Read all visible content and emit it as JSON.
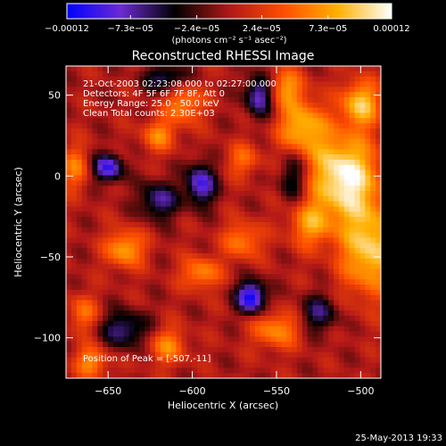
{
  "chart_data": {
    "type": "heatmap",
    "title": "Reconstructed RHESSI Image",
    "xlabel": "Heliocentric X (arcsec)",
    "ylabel": "Heliocentric Y (arcsec)",
    "xlim": [
      -675,
      -488
    ],
    "ylim": [
      -125,
      68
    ],
    "x_ticks": [
      -650,
      -600,
      -550,
      -500
    ],
    "x_tick_labels": [
      "−650",
      "−600",
      "−550",
      "−500"
    ],
    "y_ticks": [
      -100,
      -50,
      0,
      50
    ],
    "y_tick_labels": [
      "−100",
      "−50",
      "0",
      "50"
    ],
    "colorbar": {
      "min": -0.00012,
      "max": 0.00012,
      "tick_values": [
        -0.00012,
        -7.3e-05,
        -2.4e-05,
        2.4e-05,
        7.3e-05,
        0.00012
      ],
      "tick_labels": [
        "−0.00012",
        "−7.3e−05",
        "−2.4e−05",
        "2.4e−05",
        "7.3e−05",
        "0.00012"
      ],
      "unit_label": "(photons cm⁻² s⁻¹ asec⁻²)",
      "colors": [
        "#0000ff",
        "#6b2bd2",
        "#000000",
        "#b01818",
        "#ff4d00",
        "#ffb000",
        "#ffffff"
      ]
    },
    "annotations": [
      "21-Oct-2003 02:23:08.000 to 02:27:00.000",
      "Detectors: 4F 5F 6F 7F 8F, Att 0",
      "Energy Range: 25.0 - 50.0 keV",
      "Clean    Total counts: 2.30E+03",
      "Position of Peak = [-507,-11]"
    ],
    "peak": [
      -507,
      -11
    ],
    "features": [
      {
        "x": -510,
        "y": 0,
        "amp": 1.0,
        "sx": 14,
        "sy": 18
      },
      {
        "x": -535,
        "y": 30,
        "amp": 0.7,
        "sx": 10,
        "sy": 12
      },
      {
        "x": -500,
        "y": 45,
        "amp": 0.75,
        "sx": 8,
        "sy": 10
      },
      {
        "x": -495,
        "y": -45,
        "amp": 0.8,
        "sx": 12,
        "sy": 20
      },
      {
        "x": -530,
        "y": -30,
        "amp": 0.55,
        "sx": 9,
        "sy": 10
      },
      {
        "x": -640,
        "y": -45,
        "amp": 0.65,
        "sx": 8,
        "sy": 8
      },
      {
        "x": -595,
        "y": -60,
        "amp": 0.55,
        "sx": 8,
        "sy": 7
      },
      {
        "x": -605,
        "y": 45,
        "amp": 0.55,
        "sx": 8,
        "sy": 9
      },
      {
        "x": -620,
        "y": 25,
        "amp": 0.5,
        "sx": 7,
        "sy": 7
      },
      {
        "x": -545,
        "y": 55,
        "amp": 0.55,
        "sx": 8,
        "sy": 8
      },
      {
        "x": -570,
        "y": -40,
        "amp": 0.5,
        "sx": 8,
        "sy": 8
      },
      {
        "x": -550,
        "y": -95,
        "amp": 0.55,
        "sx": 10,
        "sy": 8
      },
      {
        "x": -615,
        "y": -105,
        "amp": 0.5,
        "sx": 8,
        "sy": 8
      },
      {
        "x": -660,
        "y": -115,
        "amp": 0.55,
        "sx": 7,
        "sy": 7
      },
      {
        "x": -670,
        "y": 5,
        "amp": 0.45,
        "sx": 6,
        "sy": 10
      },
      {
        "x": -665,
        "y": -85,
        "amp": 0.45,
        "sx": 6,
        "sy": 8
      },
      {
        "x": -570,
        "y": 10,
        "amp": 0.4,
        "sx": 7,
        "sy": 7
      },
      {
        "x": -650,
        "y": 5,
        "amp": -0.85,
        "sx": 6,
        "sy": 6
      },
      {
        "x": -595,
        "y": -5,
        "amp": -0.8,
        "sx": 6,
        "sy": 9
      },
      {
        "x": -565,
        "y": -75,
        "amp": -1.0,
        "sx": 6,
        "sy": 7
      },
      {
        "x": -560,
        "y": 50,
        "amp": -0.75,
        "sx": 6,
        "sy": 9
      },
      {
        "x": -620,
        "y": -15,
        "amp": -0.6,
        "sx": 8,
        "sy": 8
      },
      {
        "x": -640,
        "y": -95,
        "amp": -0.55,
        "sx": 10,
        "sy": 8
      },
      {
        "x": -525,
        "y": -85,
        "amp": -0.5,
        "sx": 8,
        "sy": 8
      },
      {
        "x": -615,
        "y": 60,
        "amp": -0.55,
        "sx": 9,
        "sy": 6
      },
      {
        "x": -540,
        "y": 0,
        "amp": -0.45,
        "sx": 6,
        "sy": 12
      }
    ]
  },
  "footer": {
    "timestamp": "25-May-2013 19:33"
  }
}
